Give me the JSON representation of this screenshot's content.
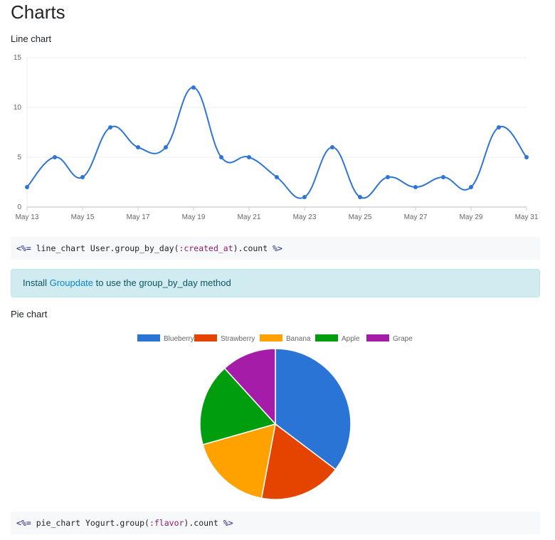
{
  "title": "Charts",
  "line_section": {
    "label": "Line chart",
    "code": {
      "open": "<%=",
      "body": " line_chart User.group_by_day(",
      "symbol": ":created_at",
      "after": ").count ",
      "close": "%>"
    }
  },
  "alert": {
    "prefix": "Install ",
    "link": "Groupdate",
    "suffix": " to use the group_by_day method"
  },
  "pie_section": {
    "label": "Pie chart",
    "code": {
      "open": "<%=",
      "body": " pie_chart Yogurt.group(",
      "symbol": ":flavor",
      "after": ").count ",
      "close": "%>"
    }
  },
  "chart_data": [
    {
      "type": "line",
      "x": [
        "May 13",
        "May 14",
        "May 15",
        "May 16",
        "May 17",
        "May 18",
        "May 19",
        "May 20",
        "May 21",
        "May 22",
        "May 23",
        "May 24",
        "May 25",
        "May 26",
        "May 27",
        "May 28",
        "May 29",
        "May 30",
        "May 31"
      ],
      "values": [
        2,
        5,
        3,
        8,
        6,
        6,
        12,
        5,
        5,
        3,
        1,
        6,
        1,
        3,
        2,
        3,
        2,
        8,
        5
      ],
      "xticks": [
        "May 13",
        "May 15",
        "May 17",
        "May 19",
        "May 21",
        "May 23",
        "May 25",
        "May 27",
        "May 29",
        "May 31"
      ],
      "yticks": [
        0,
        5,
        10,
        15
      ],
      "ylim": [
        0,
        15
      ],
      "grid": true,
      "color": "#2f75d6"
    },
    {
      "type": "pie",
      "categories": [
        "Blueberry",
        "Strawberry",
        "Banana",
        "Apple",
        "Grape"
      ],
      "values": [
        6,
        3,
        3,
        3,
        2
      ],
      "colors": [
        "#2a74d6",
        "#e44400",
        "#ffa200",
        "#009e0f",
        "#a41ca8"
      ],
      "legend": "top"
    }
  ]
}
